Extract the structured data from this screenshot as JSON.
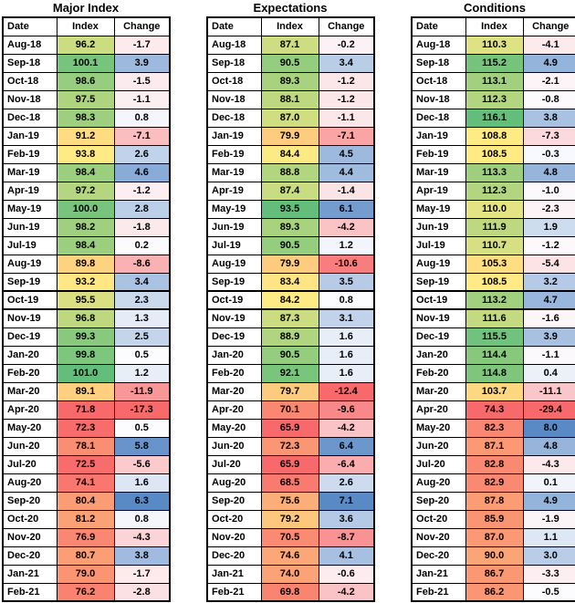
{
  "columns": [
    "Date",
    "Index",
    "Change"
  ],
  "highlight_row": "Oct-19",
  "color_scales": {
    "index": {
      "min": "#F8696B",
      "mid": "#FFEB84",
      "max": "#63BE7B"
    },
    "change": {
      "min": "#F8696B",
      "mid": "#FCFCFF",
      "max": "#5A8AC6"
    }
  },
  "tables": [
    {
      "title": "Major Index",
      "rows": [
        [
          "Aug-18",
          "96.2",
          "-1.7"
        ],
        [
          "Sep-18",
          "100.1",
          "3.9"
        ],
        [
          "Oct-18",
          "98.6",
          "-1.5"
        ],
        [
          "Nov-18",
          "97.5",
          "-1.1"
        ],
        [
          "Dec-18",
          "98.3",
          "0.8"
        ],
        [
          "Jan-19",
          "91.2",
          "-7.1"
        ],
        [
          "Feb-19",
          "93.8",
          "2.6"
        ],
        [
          "Mar-19",
          "98.4",
          "4.6"
        ],
        [
          "Apr-19",
          "97.2",
          "-1.2"
        ],
        [
          "May-19",
          "100.0",
          "2.8"
        ],
        [
          "Jun-19",
          "98.2",
          "-1.8"
        ],
        [
          "Jul-19",
          "98.4",
          "0.2"
        ],
        [
          "Aug-19",
          "89.8",
          "-8.6"
        ],
        [
          "Sep-19",
          "93.2",
          "3.4"
        ],
        [
          "Oct-19",
          "95.5",
          "2.3"
        ],
        [
          "Nov-19",
          "96.8",
          "1.3"
        ],
        [
          "Dec-19",
          "99.3",
          "2.5"
        ],
        [
          "Jan-20",
          "99.8",
          "0.5"
        ],
        [
          "Feb-20",
          "101.0",
          "1.2"
        ],
        [
          "Mar-20",
          "89.1",
          "-11.9"
        ],
        [
          "Apr-20",
          "71.8",
          "-17.3"
        ],
        [
          "May-20",
          "72.3",
          "0.5"
        ],
        [
          "Jun-20",
          "78.1",
          "5.8"
        ],
        [
          "Jul-20",
          "72.5",
          "-5.6"
        ],
        [
          "Aug-20",
          "74.1",
          "1.6"
        ],
        [
          "Sep-20",
          "80.4",
          "6.3"
        ],
        [
          "Oct-20",
          "81.2",
          "0.8"
        ],
        [
          "Nov-20",
          "76.9",
          "-4.3"
        ],
        [
          "Dec-20",
          "80.7",
          "3.8"
        ],
        [
          "Jan-21",
          "79.0",
          "-1.7"
        ],
        [
          "Feb-21",
          "76.2",
          "-2.8"
        ]
      ]
    },
    {
      "title": "Expectations",
      "rows": [
        [
          "Aug-18",
          "87.1",
          "-0.2"
        ],
        [
          "Sep-18",
          "90.5",
          "3.4"
        ],
        [
          "Oct-18",
          "89.3",
          "-1.2"
        ],
        [
          "Nov-18",
          "88.1",
          "-1.2"
        ],
        [
          "Dec-18",
          "87.0",
          "-1.1"
        ],
        [
          "Jan-19",
          "79.9",
          "-7.1"
        ],
        [
          "Feb-19",
          "84.4",
          "4.5"
        ],
        [
          "Mar-19",
          "88.8",
          "4.4"
        ],
        [
          "Apr-19",
          "87.4",
          "-1.4"
        ],
        [
          "May-19",
          "93.5",
          "6.1"
        ],
        [
          "Jun-19",
          "89.3",
          "-4.2"
        ],
        [
          "Jul-19",
          "90.5",
          "1.2"
        ],
        [
          "Aug-19",
          "79.9",
          "-10.6"
        ],
        [
          "Sep-19",
          "83.4",
          "3.5"
        ],
        [
          "Oct-19",
          "84.2",
          "0.8"
        ],
        [
          "Nov-19",
          "87.3",
          "3.1"
        ],
        [
          "Dec-19",
          "88.9",
          "1.6"
        ],
        [
          "Jan-20",
          "90.5",
          "1.6"
        ],
        [
          "Feb-20",
          "92.1",
          "1.6"
        ],
        [
          "Mar-20",
          "79.7",
          "-12.4"
        ],
        [
          "Apr-20",
          "70.1",
          "-9.6"
        ],
        [
          "May-20",
          "65.9",
          "-4.2"
        ],
        [
          "Jun-20",
          "72.3",
          "6.4"
        ],
        [
          "Jul-20",
          "65.9",
          "-6.4"
        ],
        [
          "Aug-20",
          "68.5",
          "2.6"
        ],
        [
          "Sep-20",
          "75.6",
          "7.1"
        ],
        [
          "Oct-20",
          "79.2",
          "3.6"
        ],
        [
          "Nov-20",
          "70.5",
          "-8.7"
        ],
        [
          "Dec-20",
          "74.6",
          "4.1"
        ],
        [
          "Jan-21",
          "74.0",
          "-0.6"
        ],
        [
          "Feb-21",
          "69.8",
          "-4.2"
        ]
      ]
    },
    {
      "title": "Conditions",
      "rows": [
        [
          "Aug-18",
          "110.3",
          "-4.1"
        ],
        [
          "Sep-18",
          "115.2",
          "4.9"
        ],
        [
          "Oct-18",
          "113.1",
          "-2.1"
        ],
        [
          "Nov-18",
          "112.3",
          "-0.8"
        ],
        [
          "Dec-18",
          "116.1",
          "3.8"
        ],
        [
          "Jan-19",
          "108.8",
          "-7.3"
        ],
        [
          "Feb-19",
          "108.5",
          "-0.3"
        ],
        [
          "Mar-19",
          "113.3",
          "4.8"
        ],
        [
          "Apr-19",
          "112.3",
          "-1.0"
        ],
        [
          "May-19",
          "110.0",
          "-2.3"
        ],
        [
          "Jun-19",
          "111.9",
          "1.9"
        ],
        [
          "Jul-19",
          "110.7",
          "-1.2"
        ],
        [
          "Aug-19",
          "105.3",
          "-5.4"
        ],
        [
          "Sep-19",
          "108.5",
          "3.2"
        ],
        [
          "Oct-19",
          "113.2",
          "4.7"
        ],
        [
          "Nov-19",
          "111.6",
          "-1.6"
        ],
        [
          "Dec-19",
          "115.5",
          "3.9"
        ],
        [
          "Jan-20",
          "114.4",
          "-1.1"
        ],
        [
          "Feb-20",
          "114.8",
          "0.4"
        ],
        [
          "Mar-20",
          "103.7",
          "-11.1"
        ],
        [
          "Apr-20",
          "74.3",
          "-29.4"
        ],
        [
          "May-20",
          "82.3",
          "8.0"
        ],
        [
          "Jun-20",
          "87.1",
          "4.8"
        ],
        [
          "Jul-20",
          "82.8",
          "-4.3"
        ],
        [
          "Aug-20",
          "82.9",
          "0.1"
        ],
        [
          "Sep-20",
          "87.8",
          "4.9"
        ],
        [
          "Oct-20",
          "85.9",
          "-1.9"
        ],
        [
          "Nov-20",
          "87.0",
          "1.1"
        ],
        [
          "Dec-20",
          "90.0",
          "3.0"
        ],
        [
          "Jan-21",
          "86.7",
          "-3.3"
        ],
        [
          "Feb-21",
          "86.2",
          "-0.5"
        ]
      ]
    }
  ]
}
